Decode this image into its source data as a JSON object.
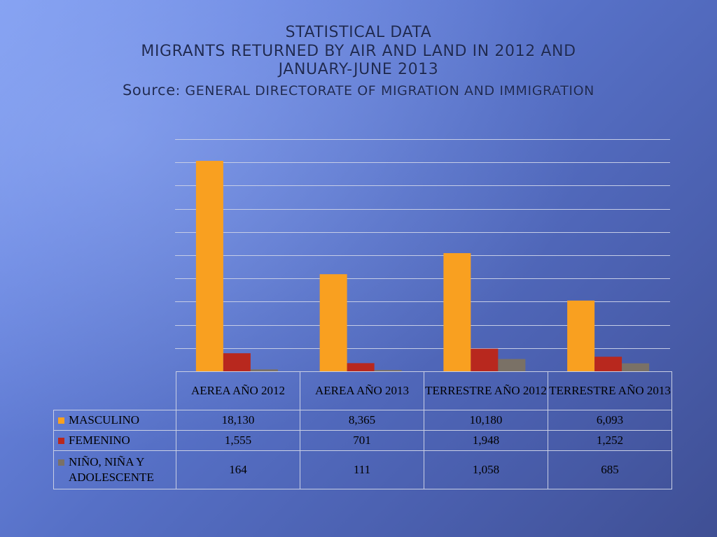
{
  "title": {
    "line1": "STATISTICAL DATA",
    "line2": "MIGRANTS RETURNED BY AIR AND LAND IN 2012 AND",
    "line3": "JANUARY-JUNE 2013",
    "source_label": "Source",
    "source_rest": ": GENERAL DIRECTORATE OF MIGRATION AND IMMIGRATION"
  },
  "chart_data": {
    "type": "bar",
    "categories": [
      "AEREA AÑO 2012",
      "AEREA AÑO 2013",
      "TERRESTRE AÑO 2012",
      "TERRESTRE AÑO 2013"
    ],
    "series": [
      {
        "name": "MASCULINO",
        "values": [
          18130,
          8365,
          10180,
          6093
        ],
        "labels": [
          "18,130",
          "8,365",
          "10,180",
          "6,093"
        ],
        "color": "#f9a020"
      },
      {
        "name": "FEMENINO",
        "values": [
          1555,
          701,
          1948,
          1252
        ],
        "labels": [
          "1,555",
          "701",
          "1,948",
          "1,252"
        ],
        "color": "#b8281e"
      },
      {
        "name": "NIÑO, NIÑA Y ADOLESCENTE",
        "values": [
          164,
          111,
          1058,
          685
        ],
        "labels": [
          "164",
          "111",
          "1,058",
          "685"
        ],
        "color": "#7a7166"
      }
    ],
    "ylim": [
      0,
      20000
    ],
    "y_gridline_step": 2000,
    "grid": true,
    "legend": "in data table",
    "data_table": true
  }
}
